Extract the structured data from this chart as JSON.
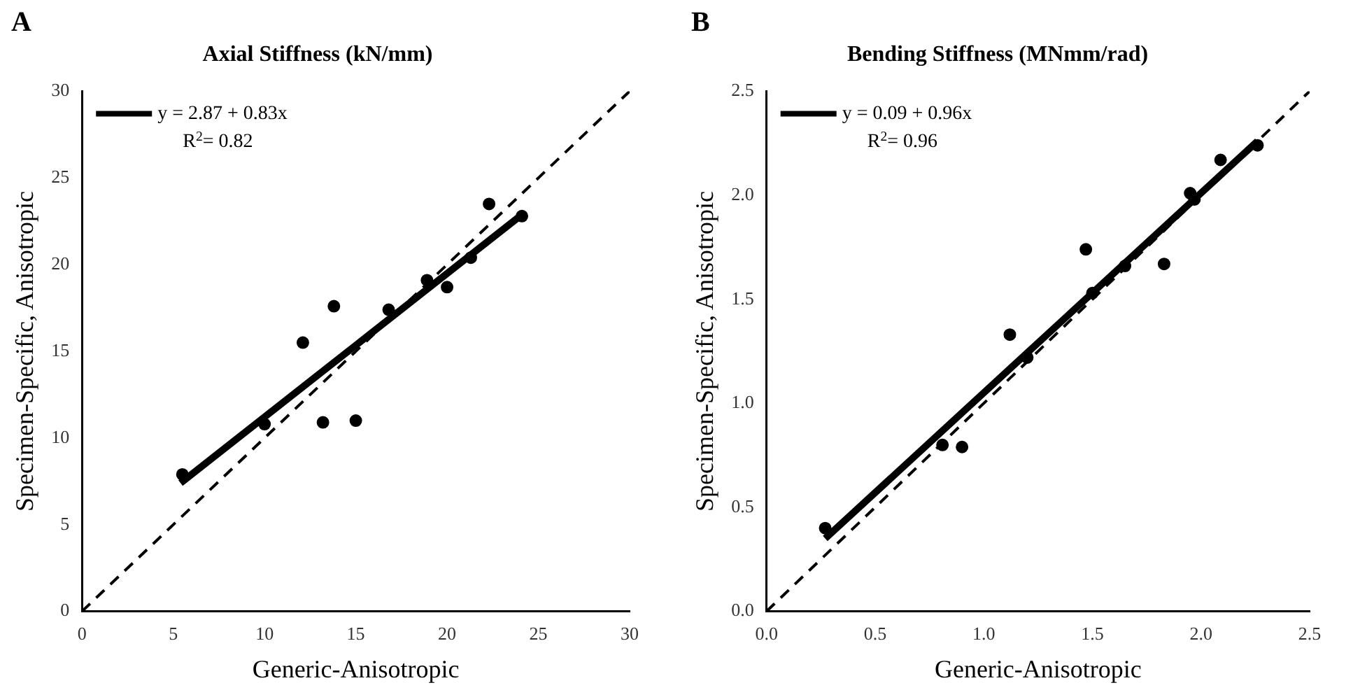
{
  "chart_data": [
    {
      "type": "scatter",
      "title": "Axial Stiffness (kN/mm)",
      "xlabel": "Generic-Anisotropic",
      "ylabel": "Specimen-Specific, Anisotropic",
      "annotations": [
        "A",
        "R$^{2}$= 0.82"
      ],
      "xlim": [
        0,
        30
      ],
      "xticks": [
        0,
        5,
        10,
        15,
        20,
        25,
        30
      ],
      "ylim": [
        0,
        30
      ],
      "yticks": [
        0,
        5,
        10,
        15,
        20,
        25,
        30
      ],
      "legend": "top left",
      "series": [
        {
          "type": "scatter",
          "color": "#000000",
          "marker": "circle",
          "x": [
            5.5,
            10,
            12.1,
            13.2,
            13.8,
            15,
            16.8,
            18.9,
            20,
            21.3,
            22.3,
            24.1
          ],
          "values": [
            7.9,
            10.8,
            15.5,
            10.9,
            17.6,
            11,
            17.4,
            19.1,
            18.7,
            20.4,
            23.5,
            22.8
          ]
        },
        {
          "type": "line",
          "name": "y = 2.87 + 0.83x",
          "color": "#000000",
          "marker": "none",
          "line_style": "solid",
          "x": [
            5.4,
            24
          ],
          "values": [
            7.4,
            22.8
          ]
        },
        {
          "type": "line",
          "color": "#000000",
          "marker": "none",
          "line_style": "dashed",
          "x": [
            0,
            30
          ],
          "values": [
            0,
            30
          ]
        }
      ]
    },
    {
      "type": "scatter",
      "title": "Bending Stiffness (MNmm/rad)",
      "xlabel": "Generic-Anisotropic",
      "ylabel": "Specimen-Specific, Anisotropic",
      "annotations": [
        "B",
        "R$^{2}$= 0.96"
      ],
      "xlim": [
        0,
        2.5
      ],
      "xticks": [
        {
          "value": 0,
          "label": "0.0"
        },
        0.5,
        {
          "value": 1,
          "label": "1.0"
        },
        1.5,
        {
          "value": 2,
          "label": "2.0"
        },
        2.5
      ],
      "ylim": [
        0,
        2.5
      ],
      "yticks": [
        {
          "value": 0,
          "label": "0.0"
        },
        0.5,
        {
          "value": 1,
          "label": "1.0"
        },
        1.5,
        {
          "value": 2,
          "label": "2.0"
        },
        2.5
      ],
      "legend": "top left",
      "series": [
        {
          "type": "scatter",
          "color": "#000000",
          "marker": "circle",
          "x": [
            0.27,
            0.81,
            0.9,
            1.12,
            1.2,
            1.47,
            1.5,
            1.65,
            1.83,
            1.95,
            1.97,
            2.09,
            2.26
          ],
          "values": [
            0.4,
            0.8,
            0.79,
            1.33,
            1.22,
            1.74,
            1.53,
            1.66,
            1.67,
            2.01,
            1.98,
            2.17,
            2.24
          ]
        },
        {
          "type": "line",
          "name": "y = 0.09 + 0.96x",
          "color": "#000000",
          "marker": "none",
          "line_style": "solid",
          "x": [
            0.27,
            2.26
          ],
          "values": [
            0.35,
            2.26
          ]
        },
        {
          "type": "line",
          "color": "#000000",
          "marker": "none",
          "line_style": "dashed",
          "x": [
            0,
            2.5
          ],
          "values": [
            0,
            2.5
          ]
        }
      ]
    }
  ]
}
